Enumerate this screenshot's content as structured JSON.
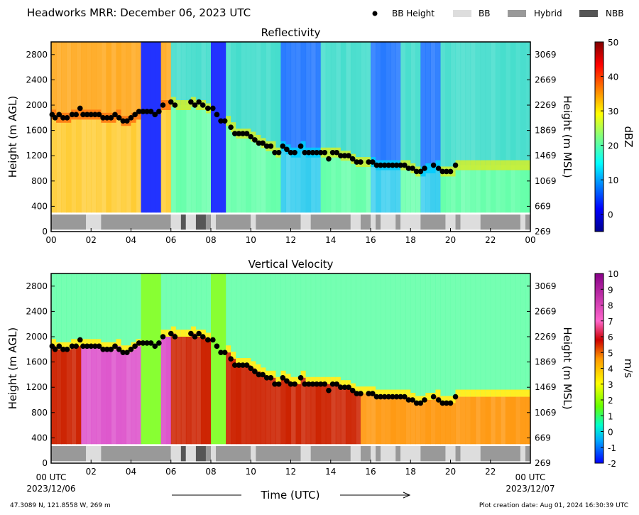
{
  "header": {
    "title": "Headworks MRR:  December 06, 2023 UTC",
    "legend": [
      {
        "label": "BB Height",
        "marker": "dot",
        "color": "#000000"
      },
      {
        "label": "BB",
        "marker": "box",
        "color": "#dddddd"
      },
      {
        "label": "Hybrid",
        "marker": "box",
        "color": "#999999"
      },
      {
        "label": "NBB",
        "marker": "box",
        "color": "#555555"
      }
    ]
  },
  "footer": {
    "location": "47.3089 N, 121.8558 W, 269 m",
    "created": "Plot creation date: Aug 01, 2024 16:30:39 UTC",
    "time_label": "Time (UTC)",
    "start_time": "00 UTC",
    "start_date": "2023/12/06",
    "end_time": "00 UTC",
    "end_date": "2023/12/07"
  },
  "chart_data": [
    {
      "type": "heatmap",
      "title": "Reflectivity",
      "xlabel": "",
      "ylabel": "Height (m AGL)",
      "ylabel_right": "Height (m MSL)",
      "xlim": [
        0,
        24
      ],
      "ylim": [
        0,
        3000
      ],
      "x_ticks": [
        "00",
        "02",
        "04",
        "06",
        "08",
        "10",
        "12",
        "14",
        "16",
        "18",
        "20",
        "22",
        "00"
      ],
      "y_ticks": [
        0,
        400,
        800,
        1200,
        1600,
        2000,
        2400,
        2800
      ],
      "y_ticks_right": [
        269,
        669,
        1069,
        1469,
        1869,
        2269,
        2669,
        3069
      ],
      "colorbar": {
        "label": "dBZ",
        "min": -5,
        "max": 50,
        "ticks": [
          0,
          10,
          20,
          30,
          40,
          50
        ],
        "scale": "jet"
      },
      "bright_band_heights": [
        [
          0.05,
          1850
        ],
        [
          0.2,
          1800
        ],
        [
          0.4,
          1850
        ],
        [
          0.6,
          1800
        ],
        [
          0.8,
          1800
        ],
        [
          1.05,
          1850
        ],
        [
          1.25,
          1850
        ],
        [
          1.45,
          1950
        ],
        [
          1.6,
          1850
        ],
        [
          1.8,
          1850
        ],
        [
          2.0,
          1850
        ],
        [
          2.2,
          1850
        ],
        [
          2.4,
          1850
        ],
        [
          2.6,
          1800
        ],
        [
          2.8,
          1800
        ],
        [
          3.0,
          1800
        ],
        [
          3.2,
          1850
        ],
        [
          3.4,
          1800
        ],
        [
          3.6,
          1750
        ],
        [
          3.8,
          1750
        ],
        [
          4.0,
          1800
        ],
        [
          4.2,
          1850
        ],
        [
          4.4,
          1900
        ],
        [
          4.6,
          1900
        ],
        [
          4.8,
          1900
        ],
        [
          5.0,
          1900
        ],
        [
          5.2,
          1850
        ],
        [
          5.4,
          1900
        ],
        [
          5.6,
          2000
        ],
        [
          6.0,
          2050
        ],
        [
          6.2,
          2000
        ],
        [
          7.0,
          2050
        ],
        [
          7.2,
          2000
        ],
        [
          7.4,
          2050
        ],
        [
          7.6,
          2000
        ],
        [
          7.85,
          1950
        ],
        [
          8.1,
          1950
        ],
        [
          8.3,
          1850
        ],
        [
          8.5,
          1750
        ],
        [
          8.7,
          1750
        ],
        [
          9.0,
          1650
        ],
        [
          9.2,
          1550
        ],
        [
          9.4,
          1550
        ],
        [
          9.6,
          1550
        ],
        [
          9.8,
          1550
        ],
        [
          10.0,
          1500
        ],
        [
          10.2,
          1450
        ],
        [
          10.4,
          1400
        ],
        [
          10.6,
          1400
        ],
        [
          10.8,
          1350
        ],
        [
          11.0,
          1350
        ],
        [
          11.2,
          1250
        ],
        [
          11.4,
          1250
        ],
        [
          11.6,
          1350
        ],
        [
          11.8,
          1300
        ],
        [
          12.0,
          1250
        ],
        [
          12.2,
          1250
        ],
        [
          12.5,
          1350
        ],
        [
          12.7,
          1250
        ],
        [
          12.9,
          1250
        ],
        [
          13.1,
          1250
        ],
        [
          13.3,
          1250
        ],
        [
          13.5,
          1250
        ],
        [
          13.7,
          1250
        ],
        [
          13.9,
          1150
        ],
        [
          14.1,
          1250
        ],
        [
          14.3,
          1250
        ],
        [
          14.5,
          1200
        ],
        [
          14.7,
          1200
        ],
        [
          14.9,
          1200
        ],
        [
          15.1,
          1150
        ],
        [
          15.3,
          1100
        ],
        [
          15.5,
          1100
        ],
        [
          15.9,
          1100
        ],
        [
          16.1,
          1100
        ],
        [
          16.3,
          1050
        ],
        [
          16.5,
          1050
        ],
        [
          16.7,
          1050
        ],
        [
          16.9,
          1050
        ],
        [
          17.1,
          1050
        ],
        [
          17.3,
          1050
        ],
        [
          17.5,
          1050
        ],
        [
          17.7,
          1050
        ],
        [
          17.9,
          1000
        ],
        [
          18.1,
          1000
        ],
        [
          18.3,
          950
        ],
        [
          18.5,
          950
        ],
        [
          18.7,
          1000
        ],
        [
          19.15,
          1050
        ],
        [
          19.4,
          1000
        ],
        [
          19.6,
          950
        ],
        [
          19.8,
          950
        ],
        [
          20.0,
          950
        ],
        [
          20.25,
          1050
        ]
      ],
      "band_classification": [
        {
          "start": 0.0,
          "end": 1.75,
          "class": "Hybrid"
        },
        {
          "start": 1.75,
          "end": 2.5,
          "class": "BB"
        },
        {
          "start": 2.5,
          "end": 6.0,
          "class": "Hybrid"
        },
        {
          "start": 6.0,
          "end": 6.5,
          "class": "BB"
        },
        {
          "start": 6.5,
          "end": 6.75,
          "class": "NBB"
        },
        {
          "start": 6.75,
          "end": 7.25,
          "class": "BB"
        },
        {
          "start": 7.25,
          "end": 7.75,
          "class": "NBB"
        },
        {
          "start": 7.75,
          "end": 8.0,
          "class": "Hybrid"
        },
        {
          "start": 8.0,
          "end": 8.25,
          "class": "BB"
        },
        {
          "start": 8.25,
          "end": 10.0,
          "class": "Hybrid"
        },
        {
          "start": 10.0,
          "end": 10.25,
          "class": "BB"
        },
        {
          "start": 10.25,
          "end": 12.5,
          "class": "Hybrid"
        },
        {
          "start": 12.5,
          "end": 13.0,
          "class": "BB"
        },
        {
          "start": 13.0,
          "end": 15.0,
          "class": "Hybrid"
        },
        {
          "start": 15.0,
          "end": 15.5,
          "class": "BB"
        },
        {
          "start": 15.5,
          "end": 16.0,
          "class": "Hybrid"
        },
        {
          "start": 16.0,
          "end": 16.25,
          "class": "BB"
        },
        {
          "start": 16.25,
          "end": 16.5,
          "class": "Hybrid"
        },
        {
          "start": 16.5,
          "end": 17.25,
          "class": "BB"
        },
        {
          "start": 17.25,
          "end": 17.5,
          "class": "Hybrid"
        },
        {
          "start": 17.5,
          "end": 18.5,
          "class": "BB"
        },
        {
          "start": 18.5,
          "end": 19.75,
          "class": "Hybrid"
        },
        {
          "start": 19.75,
          "end": 20.25,
          "class": "BB"
        },
        {
          "start": 20.25,
          "end": 20.5,
          "class": "Hybrid"
        },
        {
          "start": 20.5,
          "end": 21.5,
          "class": "BB"
        },
        {
          "start": 21.5,
          "end": 23.5,
          "class": "Hybrid"
        },
        {
          "start": 23.5,
          "end": 23.75,
          "class": "BB"
        },
        {
          "start": 23.75,
          "end": 24.0,
          "class": "Hybrid"
        }
      ],
      "grid": false
    },
    {
      "type": "heatmap",
      "title": "Vertical Velocity",
      "xlabel": "Time (UTC)",
      "ylabel": "Height (m AGL)",
      "ylabel_right": "Height (m MSL)",
      "xlim": [
        0,
        24
      ],
      "ylim": [
        0,
        3000
      ],
      "x_ticks": [
        "00 UTC",
        "02",
        "04",
        "06",
        "08",
        "10",
        "12",
        "14",
        "16",
        "18",
        "20",
        "22",
        "00 UTC"
      ],
      "y_ticks": [
        0,
        400,
        800,
        1200,
        1600,
        2000,
        2400,
        2800
      ],
      "y_ticks_right": [
        269,
        669,
        1069,
        1469,
        1869,
        2269,
        2669,
        3069
      ],
      "colorbar": {
        "label": "m/s",
        "min": -2,
        "max": 10,
        "ticks": [
          -2,
          -1,
          0,
          1,
          2,
          3,
          4,
          5,
          6,
          7,
          8,
          9,
          10
        ],
        "scale": "velocity"
      },
      "grid": false
    }
  ]
}
